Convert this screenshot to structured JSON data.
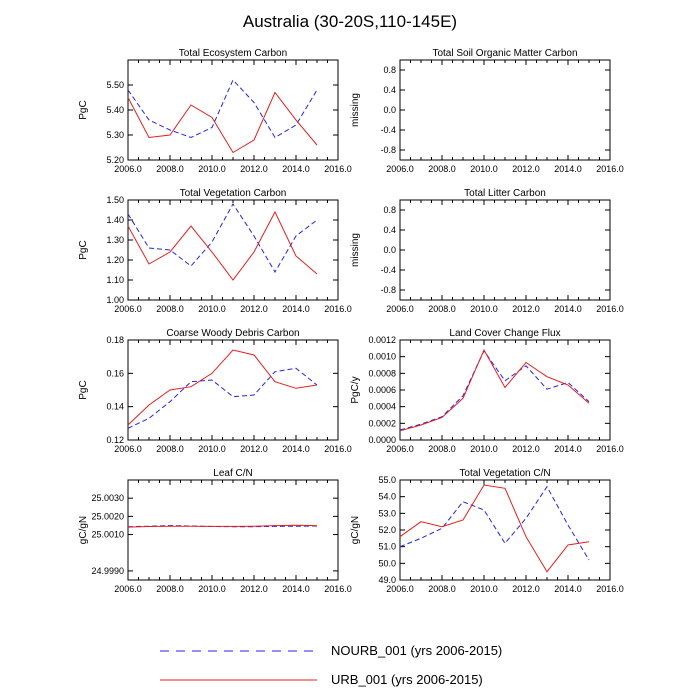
{
  "title": "Australia (30-20S,110-145E)",
  "colors": {
    "nourb": "#2323e6",
    "urb": "#e61e1e",
    "axis": "#000000"
  },
  "legend": [
    {
      "label": "NOURB_001 (yrs 2006-2015)",
      "style": "dashed",
      "color": "#2323e6"
    },
    {
      "label": "URB_001 (yrs 2006-2015)",
      "style": "solid",
      "color": "#e61e1e"
    }
  ],
  "chart_data": [
    {
      "type": "line",
      "title": "Total Ecosystem Carbon",
      "ylabel": "PgC",
      "xlim": [
        2006,
        2016
      ],
      "ylim": [
        5.2,
        5.6
      ],
      "xticks": [
        "2006.0",
        "2008.0",
        "2010.0",
        "2012.0",
        "2014.0",
        "2016.0"
      ],
      "yticks": [
        "5.20",
        "5.30",
        "5.40",
        "5.50"
      ],
      "x": [
        2006,
        2007,
        2008,
        2009,
        2010,
        2011,
        2012,
        2013,
        2014,
        2015
      ],
      "series": [
        {
          "name": "NOURB_001",
          "values": [
            5.48,
            5.36,
            5.32,
            5.29,
            5.33,
            5.52,
            5.43,
            5.29,
            5.34,
            5.48
          ]
        },
        {
          "name": "URB_001",
          "values": [
            5.45,
            5.29,
            5.3,
            5.42,
            5.37,
            5.23,
            5.28,
            5.47,
            5.36,
            5.26
          ]
        }
      ]
    },
    {
      "type": "line",
      "title": "Total Soil Organic Matter Carbon",
      "ylabel": "missing",
      "xlim": [
        2006,
        2016
      ],
      "ylim": [
        -1.0,
        1.0
      ],
      "xticks": [
        "2006.0",
        "2008.0",
        "2010.0",
        "2012.0",
        "2014.0",
        "2016.0"
      ],
      "yticks": [
        "-0.8",
        "-0.4",
        "0.0",
        "0.4",
        "0.8"
      ],
      "x": [],
      "series": []
    },
    {
      "type": "line",
      "title": "Total Vegetation Carbon",
      "ylabel": "PgC",
      "xlim": [
        2006,
        2016
      ],
      "ylim": [
        1.0,
        1.5
      ],
      "xticks": [
        "2006.0",
        "2008.0",
        "2010.0",
        "2012.0",
        "2014.0",
        "2016.0"
      ],
      "yticks": [
        "1.00",
        "1.10",
        "1.20",
        "1.30",
        "1.40",
        "1.50"
      ],
      "x": [
        2006,
        2007,
        2008,
        2009,
        2010,
        2011,
        2012,
        2013,
        2014,
        2015
      ],
      "series": [
        {
          "name": "NOURB_001",
          "values": [
            1.43,
            1.26,
            1.25,
            1.17,
            1.29,
            1.48,
            1.32,
            1.14,
            1.32,
            1.4
          ]
        },
        {
          "name": "URB_001",
          "values": [
            1.37,
            1.18,
            1.24,
            1.37,
            1.24,
            1.1,
            1.24,
            1.44,
            1.22,
            1.13
          ]
        }
      ]
    },
    {
      "type": "line",
      "title": "Total Litter Carbon",
      "ylabel": "missing",
      "xlim": [
        2006,
        2016
      ],
      "ylim": [
        -1.0,
        1.0
      ],
      "xticks": [
        "2006.0",
        "2008.0",
        "2010.0",
        "2012.0",
        "2014.0",
        "2016.0"
      ],
      "yticks": [
        "-0.8",
        "-0.4",
        "0.0",
        "0.4",
        "0.8"
      ],
      "x": [],
      "series": []
    },
    {
      "type": "line",
      "title": "Coarse Woody Debris Carbon",
      "ylabel": "PgC",
      "xlim": [
        2006,
        2016
      ],
      "ylim": [
        0.12,
        0.18
      ],
      "xticks": [
        "2006.0",
        "2008.0",
        "2010.0",
        "2012.0",
        "2014.0",
        "2016.0"
      ],
      "yticks": [
        "0.12",
        "0.14",
        "0.16",
        "0.18"
      ],
      "x": [
        2006,
        2007,
        2008,
        2009,
        2010,
        2011,
        2012,
        2013,
        2014,
        2015
      ],
      "series": [
        {
          "name": "NOURB_001",
          "values": [
            0.127,
            0.133,
            0.143,
            0.155,
            0.156,
            0.146,
            0.147,
            0.161,
            0.163,
            0.153
          ]
        },
        {
          "name": "URB_001",
          "values": [
            0.129,
            0.141,
            0.15,
            0.152,
            0.16,
            0.174,
            0.171,
            0.155,
            0.151,
            0.153
          ]
        }
      ]
    },
    {
      "type": "line",
      "title": "Land Cover Change Flux",
      "ylabel": "PgC/y",
      "xlim": [
        2006,
        2016
      ],
      "ylim": [
        0.0,
        0.0012
      ],
      "xticks": [
        "2006.0",
        "2008.0",
        "2010.0",
        "2012.0",
        "2014.0",
        "2016.0"
      ],
      "yticks": [
        "0.0000",
        "0.0002",
        "0.0004",
        "0.0006",
        "0.0008",
        "0.0010",
        "0.0012"
      ],
      "x": [
        2006,
        2007,
        2008,
        2009,
        2010,
        2011,
        2012,
        2013,
        2014,
        2015
      ],
      "series": [
        {
          "name": "NOURB_001",
          "values": [
            0.00012,
            0.00019,
            0.00028,
            0.00053,
            0.00107,
            0.00071,
            0.00089,
            0.00061,
            0.00069,
            0.00046
          ]
        },
        {
          "name": "URB_001",
          "values": [
            0.00011,
            0.00018,
            0.00027,
            0.0005,
            0.00108,
            0.00063,
            0.00093,
            0.00076,
            0.00066,
            0.00044
          ]
        }
      ]
    },
    {
      "type": "line",
      "title": "Leaf C/N",
      "ylabel": "gC/gN",
      "xlim": [
        2006,
        2016
      ],
      "ylim": [
        24.9985,
        25.004
      ],
      "xticks": [
        "2006.0",
        "2008.0",
        "2010.0",
        "2012.0",
        "2014.0",
        "2016.0"
      ],
      "yticks": [
        "24.9990",
        "25.0010",
        "25.0020",
        "25.0030"
      ],
      "ytick_values": [
        24.999,
        25.001,
        25.002,
        25.003
      ],
      "x": [
        2006,
        2007,
        2008,
        2009,
        2010,
        2011,
        2012,
        2013,
        2014,
        2015
      ],
      "series": [
        {
          "name": "NOURB_001",
          "values": [
            25.00143,
            25.00146,
            25.00149,
            25.00147,
            25.00144,
            25.00143,
            25.00143,
            25.00145,
            25.00146,
            25.00147
          ]
        },
        {
          "name": "URB_001",
          "values": [
            25.00141,
            25.00144,
            25.00146,
            25.00146,
            25.00145,
            25.00145,
            25.00146,
            25.00149,
            25.00151,
            25.00149
          ]
        }
      ]
    },
    {
      "type": "line",
      "title": "Total Vegetation C/N",
      "ylabel": "gC/gN",
      "xlim": [
        2006,
        2016
      ],
      "ylim": [
        49.0,
        55.0
      ],
      "xticks": [
        "2006.0",
        "2008.0",
        "2010.0",
        "2012.0",
        "2014.0",
        "2016.0"
      ],
      "yticks": [
        "49.0",
        "50.0",
        "51.0",
        "52.0",
        "53.0",
        "54.0",
        "55.0"
      ],
      "x": [
        2006,
        2007,
        2008,
        2009,
        2010,
        2011,
        2012,
        2013,
        2014,
        2015
      ],
      "series": [
        {
          "name": "NOURB_001",
          "values": [
            51.0,
            51.5,
            52.1,
            53.7,
            53.2,
            51.2,
            52.7,
            54.6,
            52.3,
            50.2
          ]
        },
        {
          "name": "URB_001",
          "values": [
            51.6,
            52.5,
            52.2,
            52.6,
            54.7,
            54.5,
            51.6,
            49.5,
            51.1,
            51.3
          ]
        }
      ]
    }
  ]
}
